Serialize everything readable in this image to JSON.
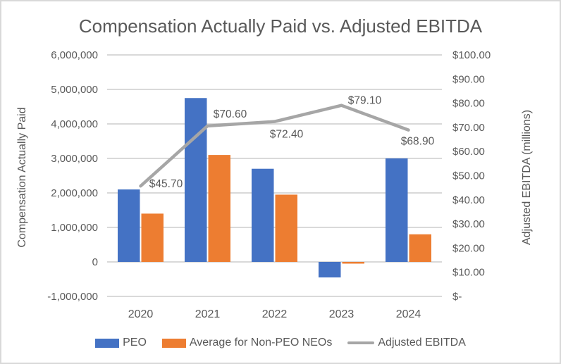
{
  "window": {
    "background_color": "#ffffff",
    "border_color": "#d9d9d9"
  },
  "chart": {
    "title": "Compensation Actually Paid vs. Adjusted EBITDA",
    "text_color": "#595959",
    "gridline_color": "#d9d9d9",
    "left_axis": {
      "title": "Compensation Actually Paid",
      "ticks": [
        "6,000,000",
        "5,000,000",
        "4,000,000",
        "3,000,000",
        "2,000,000",
        "1,000,000",
        "0",
        "-1,000,000"
      ]
    },
    "right_axis": {
      "title": "Adjusted EBITDA (millions)",
      "ticks": [
        "$100.00",
        "$90.00",
        "$80.00",
        "$70.00",
        "$60.00",
        "$50.00",
        "$40.00",
        "$30.00",
        "$20.00",
        "$10.00",
        "$-"
      ]
    },
    "x_axis": {
      "ticks": [
        "2020",
        "2021",
        "2022",
        "2023",
        "2024"
      ]
    }
  },
  "chart_data": {
    "type": "bar",
    "subtype": "bar+line combo",
    "title": "Compensation Actually Paid vs. Adjusted EBITDA",
    "categories": [
      "2020",
      "2021",
      "2022",
      "2023",
      "2024"
    ],
    "series": [
      {
        "name": "PEO",
        "render": "bar",
        "axis": "left",
        "color": "#4472c4",
        "values": [
          2100000,
          4750000,
          2700000,
          -450000,
          3000000
        ]
      },
      {
        "name": "Average for Non-PEO NEOs",
        "render": "bar",
        "axis": "left",
        "color": "#ed7d31",
        "values": [
          1400000,
          3100000,
          1950000,
          -50000,
          800000
        ]
      },
      {
        "name": "Adjusted EBITDA",
        "render": "line",
        "axis": "right",
        "color": "#a6a6a6",
        "values": [
          45.7,
          70.6,
          72.4,
          79.1,
          68.9
        ],
        "point_labels": [
          "$45.70",
          "$70.60",
          "$72.40",
          "$79.10",
          "$68.90"
        ]
      }
    ],
    "ylabel_left": "Compensation Actually Paid",
    "ylabel_right": "Adjusted EBITDA (millions)",
    "ylim_left": [
      -1000000,
      6000000
    ],
    "ylim_right": [
      0,
      100
    ],
    "grid": true,
    "legend_position": "bottom"
  }
}
